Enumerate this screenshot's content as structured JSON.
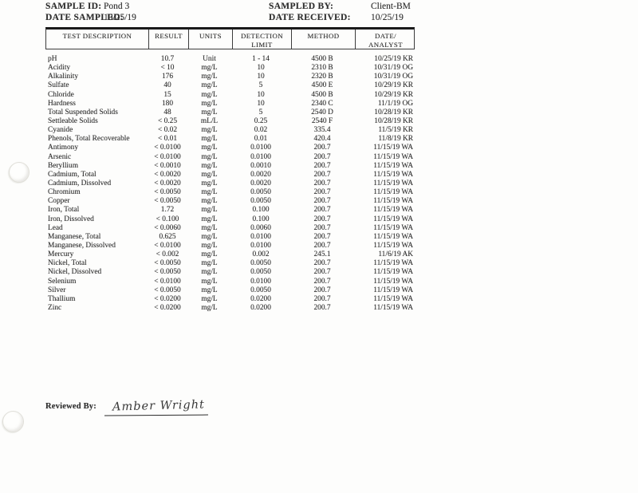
{
  "page": {
    "header": {
      "sample_id_label": "SAMPLE ID:",
      "sample_id_value": "Pond 3",
      "date_sampled_label": "DATE SAMPLED:",
      "date_sampled_value": "10/25/19",
      "sampled_by_label": "SAMPLED BY:",
      "sampled_by_value": "Client-BM",
      "date_received_label": "DATE RECEIVED:",
      "date_received_value": "10/25/19"
    },
    "table": {
      "columns": [
        "TEST DESCRIPTION",
        "RESULT",
        "UNITS",
        "DETECTION\nLIMIT",
        "METHOD",
        "DATE/\nANALYST"
      ],
      "rows": [
        {
          "cells": [
            "pH",
            "10.7",
            "Unit",
            "1 - 14",
            "4500 B",
            "10/25/19 KR"
          ]
        },
        {
          "cells": [
            "Acidity",
            "< 10",
            "mg/L",
            "10",
            "2310 B",
            "10/31/19 OG"
          ]
        },
        {
          "cells": [
            "Alkalinity",
            "176",
            "mg/L",
            "10",
            "2320 B",
            "10/31/19 OG"
          ]
        },
        {
          "cells": [
            "Sulfate",
            "40",
            "mg/L",
            "5",
            "4500 E",
            "10/29/19 KR"
          ]
        },
        {
          "cells": [
            "Chloride",
            "15",
            "mg/L",
            "10",
            "4500 B",
            "10/29/19 KR"
          ]
        },
        {
          "cells": [
            "Hardness",
            "180",
            "mg/L",
            "10",
            "2340 C",
            "11/1/19 OG"
          ]
        },
        {
          "cells": [
            "Total Suspended Solids",
            "48",
            "mg/L",
            "5",
            "2540 D",
            "10/28/19 KR"
          ]
        },
        {
          "cells": [
            "Settleable Solids",
            "< 0.25",
            "mL/L",
            "0.25",
            "2540 F",
            "10/28/19 KR"
          ]
        },
        {
          "cells": [
            "Cyanide",
            "< 0.02",
            "mg/L",
            "0.02",
            "335.4",
            "11/5/19 KR"
          ]
        },
        {
          "cells": [
            "Phenols, Total Recoverable",
            "< 0.01",
            "mg/L",
            "0.01",
            "420.4",
            "11/8/19 KR"
          ]
        },
        {
          "cells": [
            "Antimony",
            "< 0.0100",
            "mg/L",
            "0.0100",
            "200.7",
            "11/15/19 WA"
          ]
        },
        {
          "cells": [
            "Arsenic",
            "< 0.0100",
            "mg/L",
            "0.0100",
            "200.7",
            "11/15/19 WA"
          ]
        },
        {
          "cells": [
            "Beryllium",
            "< 0.0010",
            "mg/L",
            "0.0010",
            "200.7",
            "11/15/19 WA"
          ]
        },
        {
          "cells": [
            "Cadmium, Total",
            "< 0.0020",
            "mg/L",
            "0.0020",
            "200.7",
            "11/15/19 WA"
          ]
        },
        {
          "cells": [
            "Cadmium, Dissolved",
            "< 0.0020",
            "mg/L",
            "0.0020",
            "200.7",
            "11/15/19 WA"
          ]
        },
        {
          "cells": [
            "Chromium",
            "< 0.0050",
            "mg/L",
            "0.0050",
            "200.7",
            "11/15/19 WA"
          ]
        },
        {
          "cells": [
            "Copper",
            "< 0.0050",
            "mg/L",
            "0.0050",
            "200.7",
            "11/15/19 WA"
          ]
        },
        {
          "cells": [
            "Iron, Total",
            "1.72",
            "mg/L",
            "0.100",
            "200.7",
            "11/15/19 WA"
          ]
        },
        {
          "cells": [
            "Iron, Dissolved",
            "< 0.100",
            "mg/L",
            "0.100",
            "200.7",
            "11/15/19 WA"
          ]
        },
        {
          "cells": [
            "Lead",
            "< 0.0060",
            "mg/L",
            "0.0060",
            "200.7",
            "11/15/19 WA"
          ]
        },
        {
          "cells": [
            "Manganese, Total",
            "0.625",
            "mg/L",
            "0.0100",
            "200.7",
            "11/15/19 WA"
          ]
        },
        {
          "cells": [
            "Manganese, Dissolved",
            "< 0.0100",
            "mg/L",
            "0.0100",
            "200.7",
            "11/15/19 WA"
          ]
        },
        {
          "cells": [
            "Mercury",
            "< 0.002",
            "mg/L",
            "0.002",
            "245.1",
            "11/6/19 AK"
          ]
        },
        {
          "cells": [
            "Nickel, Total",
            "< 0.0050",
            "mg/L",
            "0.0050",
            "200.7",
            "11/15/19 WA"
          ]
        },
        {
          "cells": [
            "Nickel, Dissolved",
            "< 0.0050",
            "mg/L",
            "0.0050",
            "200.7",
            "11/15/19 WA"
          ]
        },
        {
          "cells": [
            "Selenium",
            "< 0.0100",
            "mg/L",
            "0.0100",
            "200.7",
            "11/15/19 WA"
          ]
        },
        {
          "cells": [
            "Silver",
            "< 0.0050",
            "mg/L",
            "0.0050",
            "200.7",
            "11/15/19 WA"
          ]
        },
        {
          "cells": [
            "Thallium",
            "< 0.0200",
            "mg/L",
            "0.0200",
            "200.7",
            "11/15/19 WA"
          ]
        },
        {
          "cells": [
            "Zinc",
            "< 0.0200",
            "mg/L",
            "0.0200",
            "200.7",
            "11/15/19 WA"
          ]
        }
      ]
    },
    "footer": {
      "reviewed_by_label": "Reviewed By:",
      "signature": "Amber Wright"
    }
  }
}
